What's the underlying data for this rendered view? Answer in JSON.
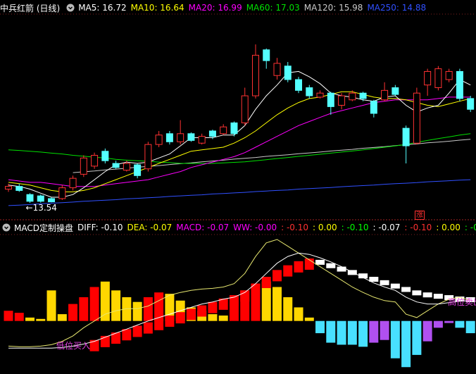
{
  "chart_data": [
    {
      "type": "candlestick",
      "title": "中兵红箭 (日线)",
      "up_color": "#ff3232",
      "down_color": "#54ffff",
      "ylim": [
        13.1,
        20.0
      ],
      "candles": {
        "open": [
          14.05,
          14.15,
          13.85,
          13.8,
          13.7,
          13.7,
          14.1,
          14.6,
          14.9,
          15.45,
          15.0,
          14.75,
          14.95,
          14.8,
          15.7,
          16.1,
          15.8,
          16.1,
          15.75,
          16.2,
          16.1,
          16.5,
          16.5,
          17.5,
          19.2,
          18.25,
          18.6,
          18.1,
          17.8,
          17.45,
          17.6,
          17.15,
          17.35,
          17.6,
          17.3,
          17.35,
          17.8,
          16.3,
          15.75,
          17.9,
          17.8,
          18.1,
          18.4,
          17.4
        ],
        "high": [
          14.25,
          14.25,
          13.9,
          13.85,
          13.75,
          14.2,
          14.55,
          15.3,
          15.4,
          15.55,
          15.1,
          15.1,
          15.0,
          15.8,
          16.2,
          16.2,
          16.6,
          16.15,
          16.1,
          16.25,
          16.45,
          16.55,
          17.8,
          19.4,
          19.25,
          18.9,
          18.75,
          18.2,
          17.9,
          17.7,
          17.65,
          17.6,
          17.7,
          17.65,
          17.35,
          18.0,
          17.9,
          16.4,
          17.8,
          18.5,
          18.6,
          18.5,
          18.5,
          17.5
        ],
        "low": [
          13.95,
          13.95,
          13.54,
          13.55,
          13.56,
          13.65,
          14.0,
          14.5,
          14.8,
          15.0,
          14.8,
          14.7,
          14.45,
          14.7,
          15.6,
          15.7,
          15.7,
          15.8,
          15.7,
          15.9,
          16.05,
          16.0,
          16.4,
          17.4,
          18.5,
          18.1,
          18.0,
          17.6,
          17.4,
          17.4,
          16.8,
          17.0,
          17.3,
          17.3,
          16.7,
          17.3,
          17.5,
          15.0,
          15.7,
          17.5,
          17.7,
          18.0,
          17.3,
          16.9
        ],
        "close": [
          14.15,
          14.0,
          13.6,
          13.6,
          13.58,
          14.1,
          14.45,
          15.2,
          15.3,
          15.1,
          14.85,
          15.0,
          14.55,
          15.7,
          16.05,
          15.8,
          16.1,
          15.85,
          16.0,
          16.0,
          16.35,
          16.1,
          17.5,
          19.0,
          18.8,
          18.7,
          18.1,
          17.7,
          17.5,
          17.6,
          17.1,
          17.5,
          17.6,
          17.4,
          16.85,
          17.7,
          17.55,
          15.65,
          17.6,
          18.4,
          18.5,
          18.4,
          17.4,
          17.0
        ]
      },
      "series": [
        {
          "legend": "MA5: 16.72",
          "color": "#ffffff",
          "values": [
            14.2,
            14.15,
            14.05,
            13.9,
            13.75,
            13.75,
            13.85,
            14.1,
            14.4,
            14.7,
            14.95,
            15.05,
            15.0,
            15.05,
            15.2,
            15.35,
            15.65,
            15.95,
            15.95,
            15.95,
            16.05,
            16.05,
            16.4,
            17.0,
            17.5,
            17.9,
            18.35,
            18.4,
            18.2,
            17.95,
            17.6,
            17.5,
            17.45,
            17.35,
            17.3,
            17.45,
            17.5,
            17.15,
            16.9,
            17.05,
            17.15,
            17.6,
            18.1,
            17.9
          ]
        },
        {
          "legend": "MA10: 16.64",
          "color": "#ffff00",
          "values": [
            14.3,
            14.25,
            14.2,
            14.1,
            14.0,
            13.95,
            13.95,
            14.0,
            14.1,
            14.25,
            14.4,
            14.55,
            14.7,
            14.85,
            15.0,
            15.15,
            15.3,
            15.45,
            15.5,
            15.55,
            15.6,
            15.75,
            15.95,
            16.2,
            16.5,
            16.8,
            17.05,
            17.25,
            17.4,
            17.45,
            17.55,
            17.65,
            17.65,
            17.55,
            17.45,
            17.4,
            17.4,
            17.35,
            17.25,
            17.15,
            17.1,
            17.2,
            17.3,
            17.4
          ]
        },
        {
          "legend": "MA20: 16.99",
          "color": "#ff00ff",
          "values": [
            14.4,
            14.35,
            14.3,
            14.3,
            14.25,
            14.2,
            14.15,
            14.15,
            14.15,
            14.2,
            14.25,
            14.3,
            14.35,
            14.4,
            14.5,
            14.6,
            14.7,
            14.85,
            14.95,
            15.05,
            15.15,
            15.25,
            15.4,
            15.6,
            15.8,
            16.0,
            16.2,
            16.4,
            16.55,
            16.7,
            16.85,
            16.95,
            17.05,
            17.15,
            17.25,
            17.3,
            17.35,
            17.35,
            17.35,
            17.35,
            17.4,
            17.45,
            17.45,
            17.45
          ]
        },
        {
          "legend": "MA60: 17.03",
          "color": "#00e000",
          "values": [
            15.5,
            15.48,
            15.45,
            15.42,
            15.38,
            15.35,
            15.3,
            15.27,
            15.23,
            15.2,
            15.15,
            15.12,
            15.1,
            15.08,
            15.05,
            15.03,
            15.0,
            15.0,
            15.0,
            15.0,
            15.02,
            15.04,
            15.06,
            15.1,
            15.14,
            15.18,
            15.22,
            15.26,
            15.3,
            15.34,
            15.38,
            15.42,
            15.46,
            15.5,
            15.55,
            15.6,
            15.65,
            15.7,
            15.78,
            15.85,
            15.92,
            15.98,
            16.05,
            16.1
          ]
        },
        {
          "legend": "MA120: 15.98",
          "color": "#c8c8c8",
          "values": [
            null,
            null,
            null,
            null,
            null,
            null,
            14.66,
            14.69,
            14.72,
            14.76,
            14.79,
            14.82,
            14.86,
            14.89,
            14.92,
            14.96,
            14.99,
            15.02,
            15.06,
            15.09,
            15.12,
            15.16,
            15.19,
            15.22,
            15.26,
            15.29,
            15.32,
            15.36,
            15.39,
            15.42,
            15.46,
            15.49,
            15.52,
            15.56,
            15.59,
            15.62,
            15.66,
            15.69,
            15.72,
            15.76,
            15.79,
            15.82,
            15.86,
            15.89
          ]
        },
        {
          "legend": "MA250: 14.88",
          "color": "#3050ff",
          "values": [
            13.44,
            13.46,
            13.48,
            13.51,
            13.53,
            13.55,
            13.57,
            13.6,
            13.62,
            13.64,
            13.66,
            13.69,
            13.71,
            13.73,
            13.75,
            13.78,
            13.8,
            13.82,
            13.84,
            13.87,
            13.89,
            13.91,
            13.93,
            13.96,
            13.98,
            14.0,
            14.02,
            14.05,
            14.07,
            14.09,
            14.11,
            14.14,
            14.16,
            14.18,
            14.2,
            14.23,
            14.25,
            14.27,
            14.29,
            14.32,
            14.34,
            14.36,
            14.38,
            14.4
          ]
        }
      ],
      "annotations": [
        {
          "text": "←13.54",
          "color": "#ffffff"
        },
        {
          "text": "涨",
          "color": "#ff3030"
        }
      ]
    },
    {
      "type": "bar",
      "title": "MACD定制操盘",
      "header": [
        {
          "text": "DIFF: -0.10",
          "color": "#ffffff"
        },
        {
          "text": "DEA: -0.07",
          "color": "#ffff00"
        },
        {
          "text": "MACD: -0.07",
          "color": "#ff00ff"
        },
        {
          "text": "WW: -0.00",
          "color": "#ff00ff"
        },
        {
          "text": ": -0.10",
          "color": "#ff3030"
        },
        {
          "text": ": 0.00",
          "color": "#ffff00"
        },
        {
          "text": ": -0.10",
          "color": "#00ff00"
        },
        {
          "text": ": -0.07",
          "color": "#ffffff"
        },
        {
          "text": ": -0.10",
          "color": "#ff3030"
        },
        {
          "text": ": 0.00",
          "color": "#ffff00"
        },
        {
          "text": ": -0.10",
          "color": "#00ff00"
        },
        {
          "text": ": -0.",
          "color": "#ff3030"
        }
      ],
      "ylim": [
        -0.75,
        1.2
      ],
      "values": [
        0.15,
        0.12,
        0.05,
        0.03,
        0.45,
        0.1,
        0.25,
        0.35,
        0.5,
        0.58,
        0.45,
        0.35,
        0.28,
        0.35,
        0.42,
        0.4,
        0.3,
        0.2,
        0.15,
        0.1,
        0.08,
        0.3,
        0.45,
        0.55,
        0.58,
        0.5,
        0.35,
        0.2,
        0.05,
        -0.18,
        -0.32,
        -0.35,
        -0.35,
        -0.38,
        -0.32,
        -0.28,
        -0.55,
        -0.68,
        -0.5,
        -0.3,
        -0.1,
        -0.03,
        -0.1,
        -0.18
      ],
      "bar_colors": [
        "#ff0000",
        "#ff0000",
        "#ffd700",
        "#ffd700",
        "#ffd700",
        "#ffd700",
        "#ff0000",
        "#ff0000",
        "#ff0000",
        "#ffd700",
        "#ffd700",
        "#ffd700",
        "#ffd700",
        "#ff0000",
        "#ff0000",
        "#ffd700",
        "#ffd700",
        "#ffd700",
        "#ffd700",
        "#ffd700",
        "#ffd700",
        "#ff0000",
        "#ff0000",
        "#ff0000",
        "#ffd700",
        "#ffd700",
        "#ffd700",
        "#ffd700",
        "#ffd700",
        "#48e0ff",
        "#48e0ff",
        "#48e0ff",
        "#48e0ff",
        "#48e0ff",
        "#b050f0",
        "#b050f0",
        "#48e0ff",
        "#48e0ff",
        "#48e0ff",
        "#b050f0",
        "#b050f0",
        "#b050f0",
        "#48e0ff",
        "#48e0ff"
      ],
      "series": [
        {
          "color": "#e8e870",
          "values": [
            -0.37,
            -0.38,
            -0.38,
            -0.37,
            -0.35,
            -0.3,
            -0.22,
            -0.1,
            0,
            0.1,
            0.15,
            0.18,
            0.18,
            0.22,
            0.3,
            0.38,
            0.42,
            0.45,
            0.47,
            0.48,
            0.5,
            0.55,
            0.7,
            0.95,
            1.15,
            1.2,
            1.1,
            1.0,
            0.9,
            0.8,
            0.7,
            0.6,
            0.5,
            0.42,
            0.35,
            0.3,
            0.28,
            0.1,
            0.05,
            0.15,
            0.25,
            0.32,
            0.35,
            0.3
          ]
        },
        {
          "color": "#ffffff",
          "values": [
            -0.4,
            -0.4,
            -0.4,
            -0.4,
            -0.4,
            -0.39,
            -0.37,
            -0.34,
            -0.3,
            -0.24,
            -0.18,
            -0.12,
            -0.06,
            0,
            0.05,
            0.1,
            0.15,
            0.2,
            0.25,
            0.28,
            0.32,
            0.35,
            0.42,
            0.55,
            0.7,
            0.85,
            0.95,
            1.0,
            0.98,
            0.93,
            0.87,
            0.8,
            0.72,
            0.64,
            0.56,
            0.5,
            0.45,
            0.35,
            0.28,
            0.25,
            0.25,
            0.27,
            0.29,
            0.3
          ]
        }
      ],
      "blocks": {
        "rise_color": "#ff0000",
        "fall_color": "#ffffff",
        "values": [
          null,
          null,
          null,
          null,
          null,
          null,
          null,
          null,
          -0.28,
          -0.22,
          -0.17,
          -0.12,
          -0.07,
          -0.02,
          0.03,
          0.08,
          0.13,
          0.18,
          0.23,
          0.28,
          0.33,
          0.38,
          0.45,
          0.55,
          0.65,
          0.75,
          0.82,
          0.88,
          0.92,
          0.9,
          0.85,
          0.8,
          0.75,
          0.7,
          0.65,
          0.6,
          0.55,
          0.5,
          0.45,
          0.42,
          0.4,
          0.38,
          0.36,
          0.35
        ]
      },
      "annotations": [
        {
          "text": "低位买入",
          "color": "#e040e0"
        },
        {
          "text": "高位卖出",
          "color": "#e040e0"
        }
      ]
    }
  ]
}
